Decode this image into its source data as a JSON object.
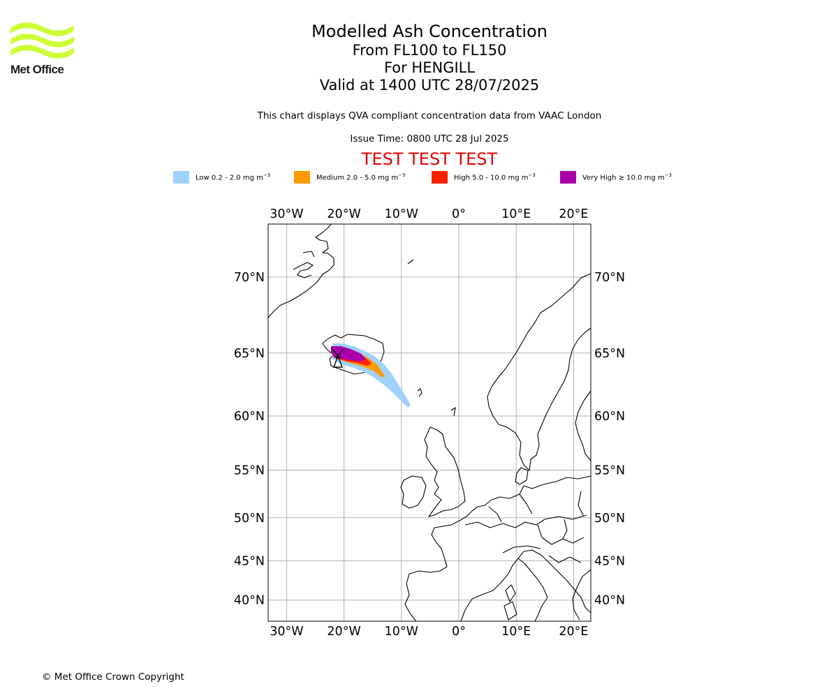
{
  "logo": {
    "text": "Met Office",
    "color": "#ccff33"
  },
  "title": {
    "line1": "Modelled Ash Concentration",
    "line2": "From FL100 to FL150",
    "line3": "For HENGILL",
    "line4": "Valid at 1400 UTC 28/07/2025"
  },
  "note": "This chart displays QVA compliant concentration data from VAAC London",
  "issue_time": "Issue Time: 0800 UTC 28 Jul 2025",
  "banner": "TEST TEST TEST",
  "legend": [
    {
      "label": "Low 0.2 - 2.0 mg m",
      "color": "#a0d2ff"
    },
    {
      "label": "Medium 2.0 - 5.0 mg m",
      "color": "#ff9900"
    },
    {
      "label": "High 5.0 - 10.0 mg m",
      "color": "#ff2200"
    },
    {
      "label": "Very High ≥ 10.0 mg m",
      "color": "#aa00aa"
    }
  ],
  "legend_unit_exponent": "−3",
  "map": {
    "lon_ticks": [
      {
        "label": "30°W",
        "lon": -30
      },
      {
        "label": "20°W",
        "lon": -20
      },
      {
        "label": "10°W",
        "lon": -10
      },
      {
        "label": "0°",
        "lon": 0
      },
      {
        "label": "10°E",
        "lon": 10
      },
      {
        "label": "20°E",
        "lon": 20
      }
    ],
    "lat_ticks": [
      {
        "label": "70°N",
        "lat": 70
      },
      {
        "label": "65°N",
        "lat": 65
      },
      {
        "label": "60°N",
        "lat": 60
      },
      {
        "label": "55°N",
        "lat": 55
      },
      {
        "label": "50°N",
        "lat": 50
      },
      {
        "label": "45°N",
        "lat": 45
      },
      {
        "label": "40°N",
        "lat": 40
      }
    ],
    "volcano": {
      "name": "HENGILL",
      "lat": 64.1,
      "lon": -21.3
    }
  },
  "copyright": "© Met Office Crown Copyright"
}
